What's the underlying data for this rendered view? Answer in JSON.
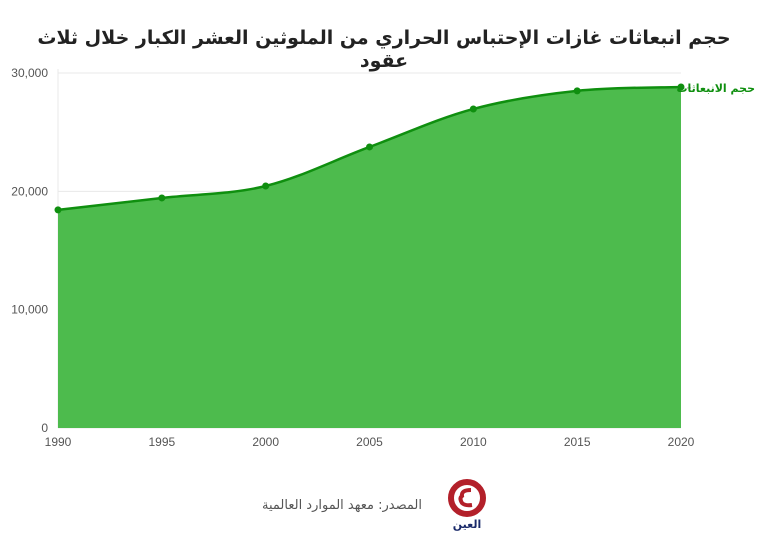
{
  "title": "حجم انبعاثات غازات الإحتباس الحراري من الملوثين العشر الكبار خلال ثلاث عقود",
  "source": "المصدر: معهد الموارد العالمية",
  "logo_text": "العين",
  "colors": {
    "line": "#0f8f0f",
    "fill": "#4dbb4d",
    "grid": "#e8e8e8"
  },
  "chart_data": {
    "type": "area",
    "title": "حجم انبعاثات غازات الإحتباس الحراري من الملوثين العشر الكبار خلال ثلاث عقود",
    "x": [
      1990,
      1995,
      2000,
      2005,
      2010,
      2015,
      2020
    ],
    "series": [
      {
        "name": "حجم الانبعاثات",
        "values": [
          18430,
          19440,
          20450,
          23750,
          26960,
          28490,
          28820
        ]
      }
    ],
    "xlim": [
      1990,
      2020
    ],
    "ylim": [
      0,
      30000
    ],
    "xticks": [
      "1990",
      "1995",
      "2000",
      "2005",
      "2010",
      "2015",
      "2020"
    ],
    "yticks": [
      "0",
      "10,000",
      "20,000",
      "30,000"
    ],
    "grid": true,
    "legend": "end-of-line label, right"
  }
}
